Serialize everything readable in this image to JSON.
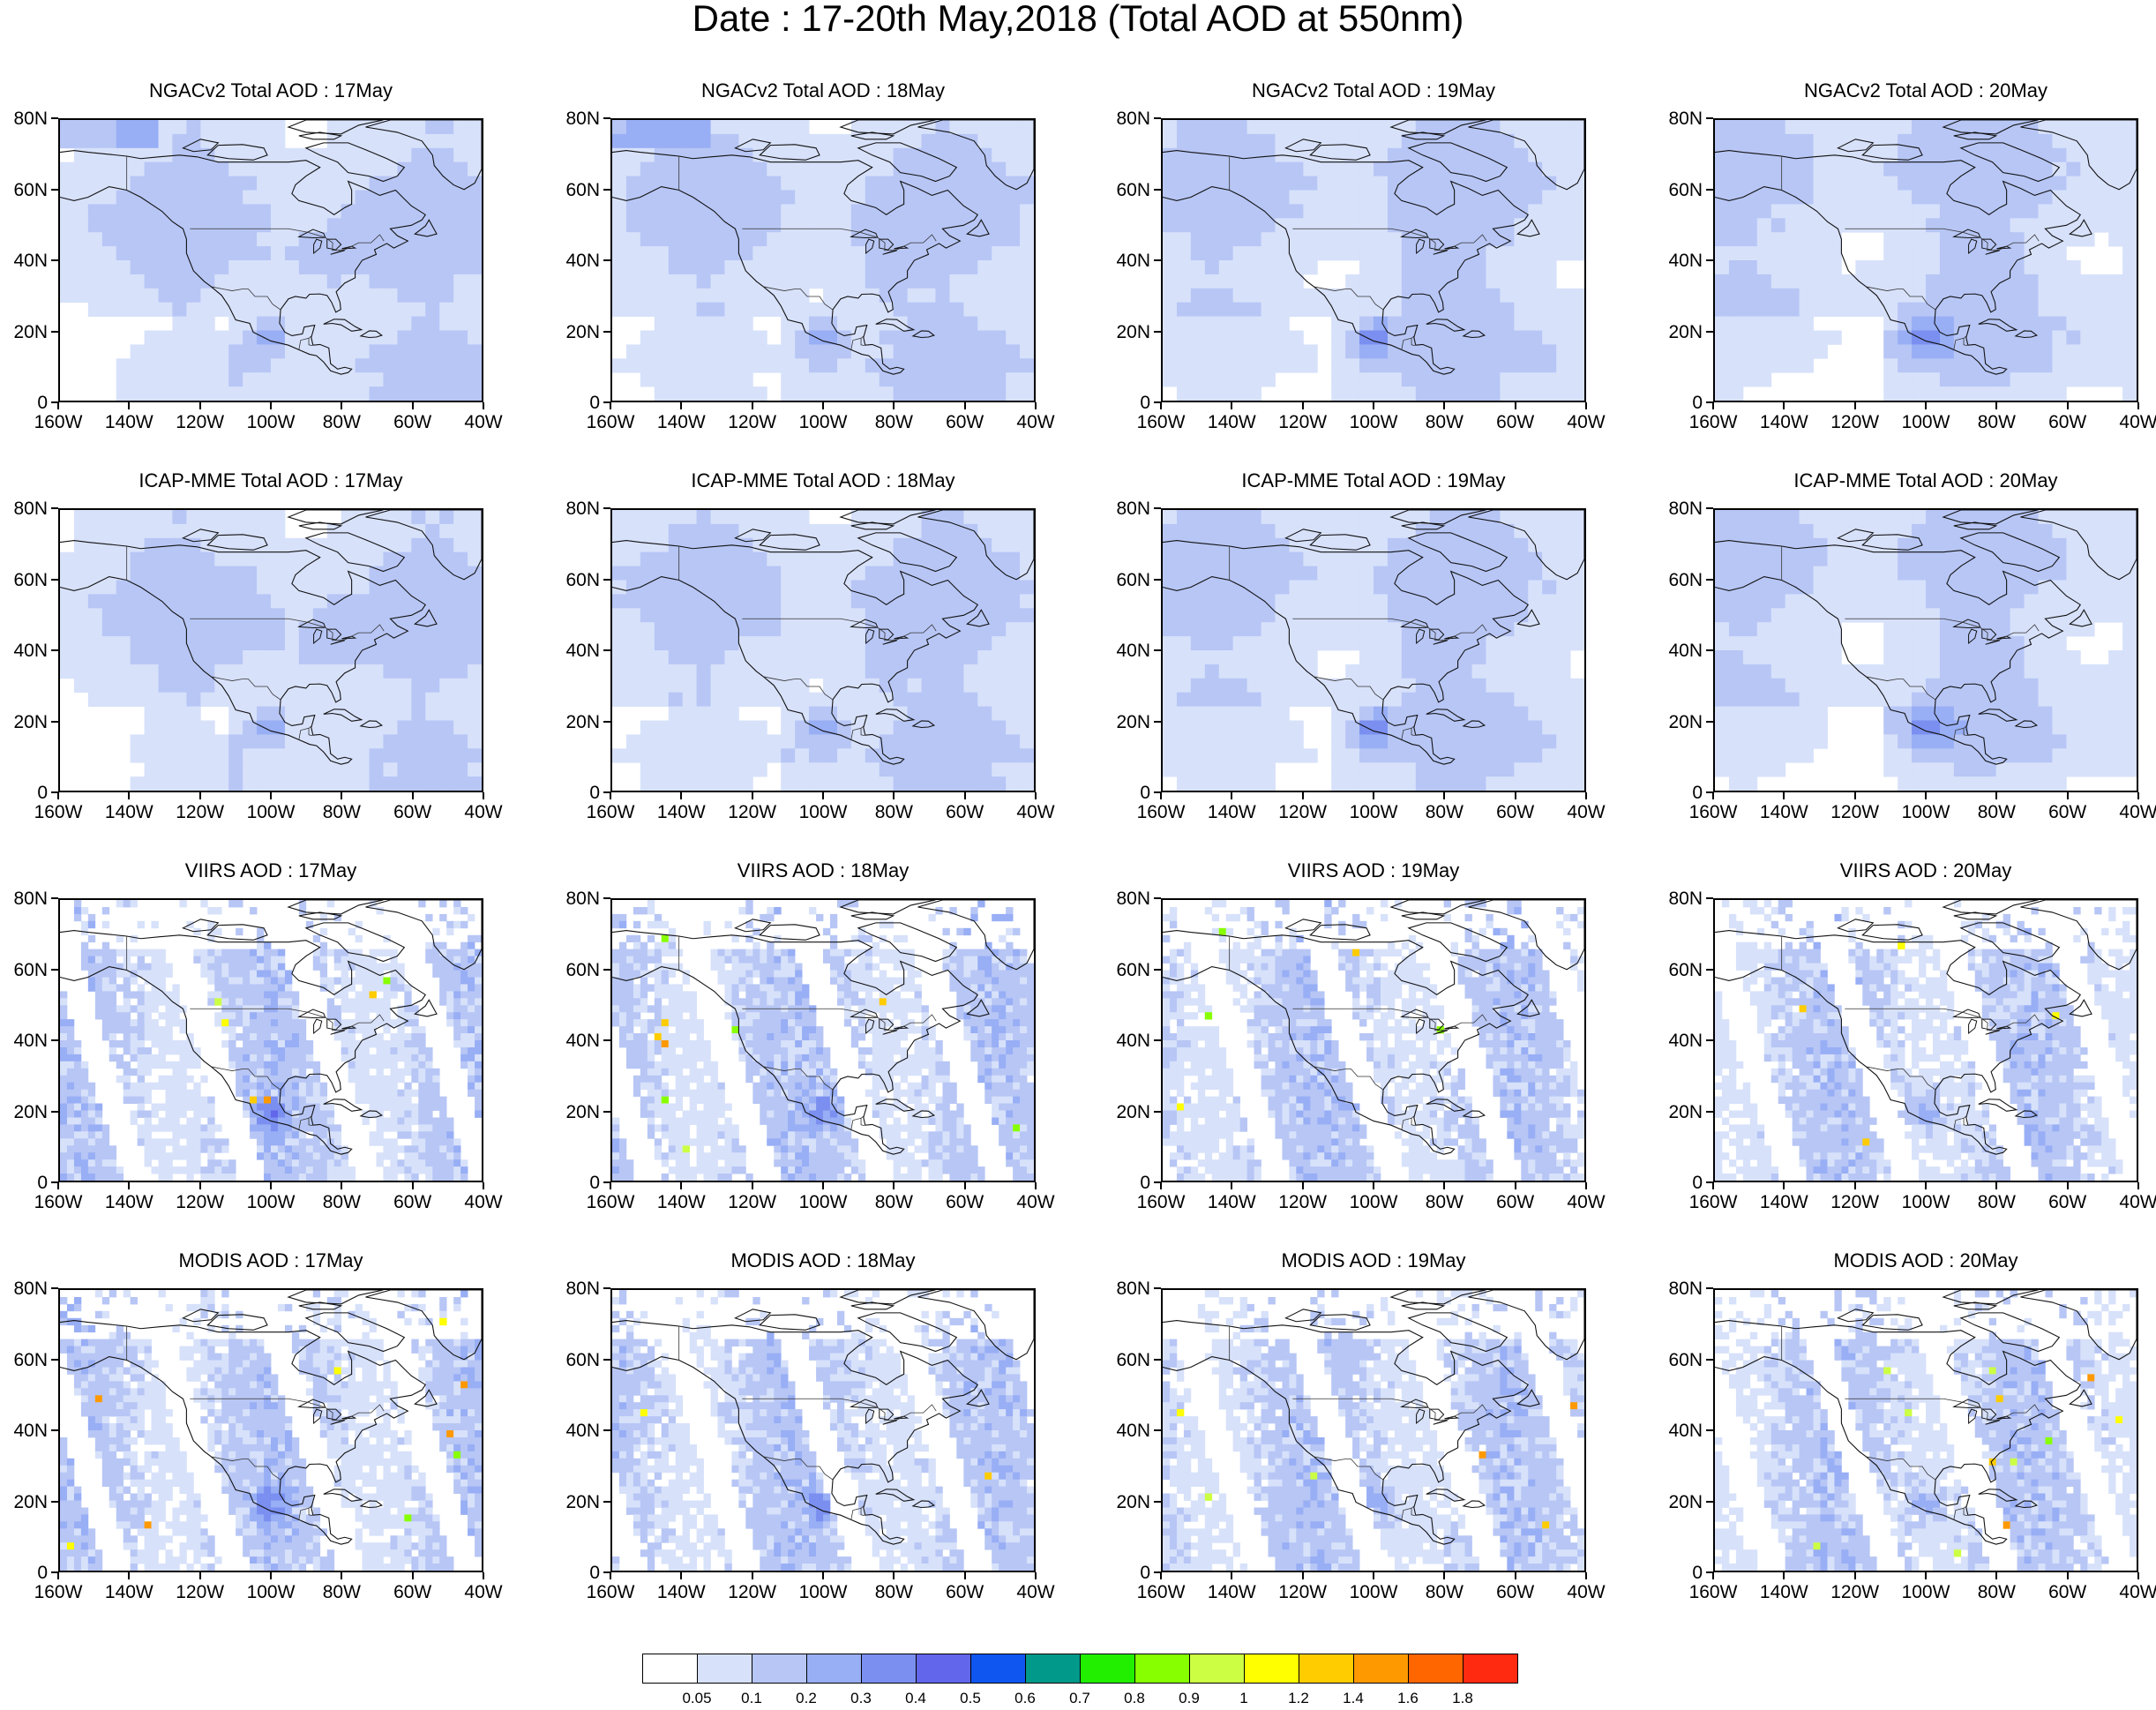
{
  "title": "Date : 17-20th May,2018 (Total AOD at 550nm)",
  "lat_labels": [
    "80N",
    "60N",
    "40N",
    "20N",
    "0"
  ],
  "lon_labels": [
    "160W",
    "140W",
    "120W",
    "100W",
    "80W",
    "60W",
    "40W"
  ],
  "axes": {
    "lon_range": [
      -160,
      -40
    ],
    "lat_range": [
      0,
      80
    ]
  },
  "rows": [
    {
      "product": "NGACv2",
      "field": "smooth-model",
      "titles": [
        "NGACv2 Total AOD : 17May",
        "NGACv2 Total AOD : 18May",
        "NGACv2 Total AOD : 19May",
        "NGACv2 Total AOD : 20May"
      ]
    },
    {
      "product": "ICAP-MME",
      "field": "smooth-model",
      "titles": [
        "ICAP-MME Total AOD : 17May",
        "ICAP-MME Total AOD : 18May",
        "ICAP-MME Total AOD : 19May",
        "ICAP-MME Total AOD : 20May"
      ]
    },
    {
      "product": "VIIRS",
      "field": "satellite-swath",
      "titles": [
        "VIIRS AOD : 17May",
        "VIIRS AOD : 18May",
        "VIIRS AOD : 19May",
        "VIIRS AOD : 20May"
      ]
    },
    {
      "product": "MODIS",
      "field": "satellite-swath",
      "titles": [
        "MODIS AOD : 17May",
        "MODIS AOD : 18May",
        "MODIS AOD : 19May",
        "MODIS AOD : 20May"
      ]
    }
  ],
  "colorbar": {
    "labels": [
      "0.05",
      "0.1",
      "0.2",
      "0.3",
      "0.4",
      "0.5",
      "0.6",
      "0.7",
      "0.8",
      "0.9",
      "1",
      "1.2",
      "1.4",
      "1.6",
      "1.8"
    ],
    "colors": [
      "#ffffff",
      "#d7e1fa",
      "#b7c6f5",
      "#98aef5",
      "#7a8ff0",
      "#6266ea",
      "#0f56f0",
      "#00998a",
      "#22ee00",
      "#88ff00",
      "#ccff44",
      "#ffff00",
      "#ffcc00",
      "#ff9900",
      "#ff6600",
      "#ff2a10"
    ]
  }
}
